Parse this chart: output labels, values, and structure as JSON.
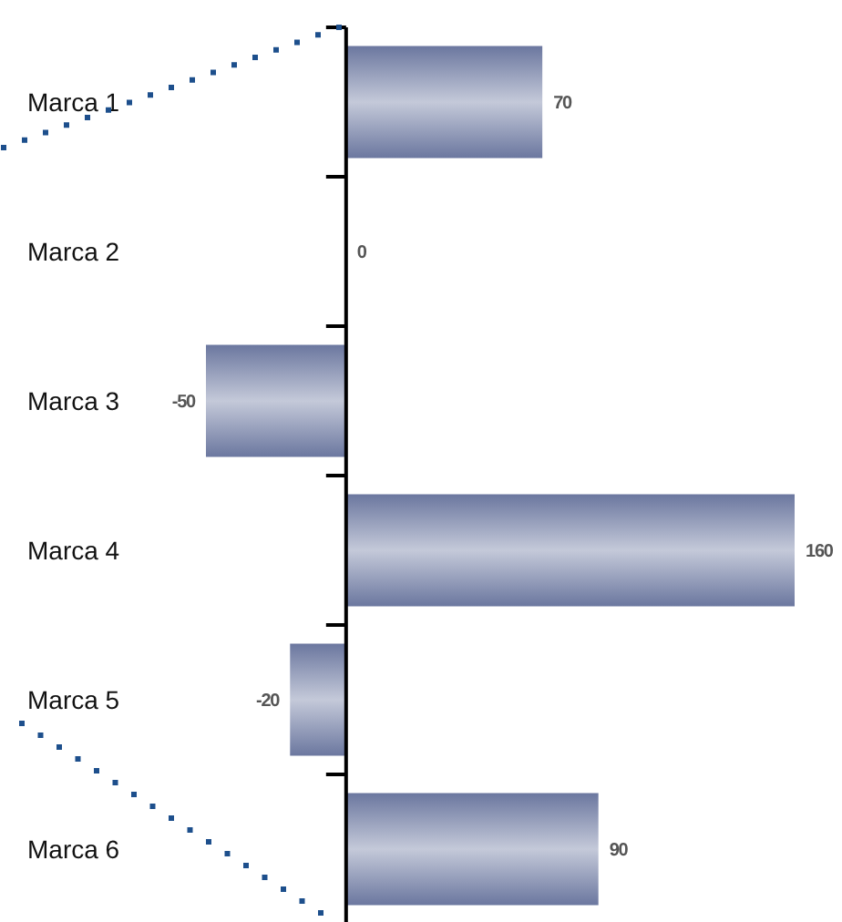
{
  "chart_data": {
    "type": "bar",
    "orientation": "horizontal",
    "categories": [
      "Marca 1",
      "Marca 2",
      "Marca 3",
      "Marca 4",
      "Marca 5",
      "Marca 6"
    ],
    "values": [
      70,
      0,
      -50,
      160,
      -20,
      90
    ],
    "color": "#6b779f",
    "data_labels": true
  }
}
